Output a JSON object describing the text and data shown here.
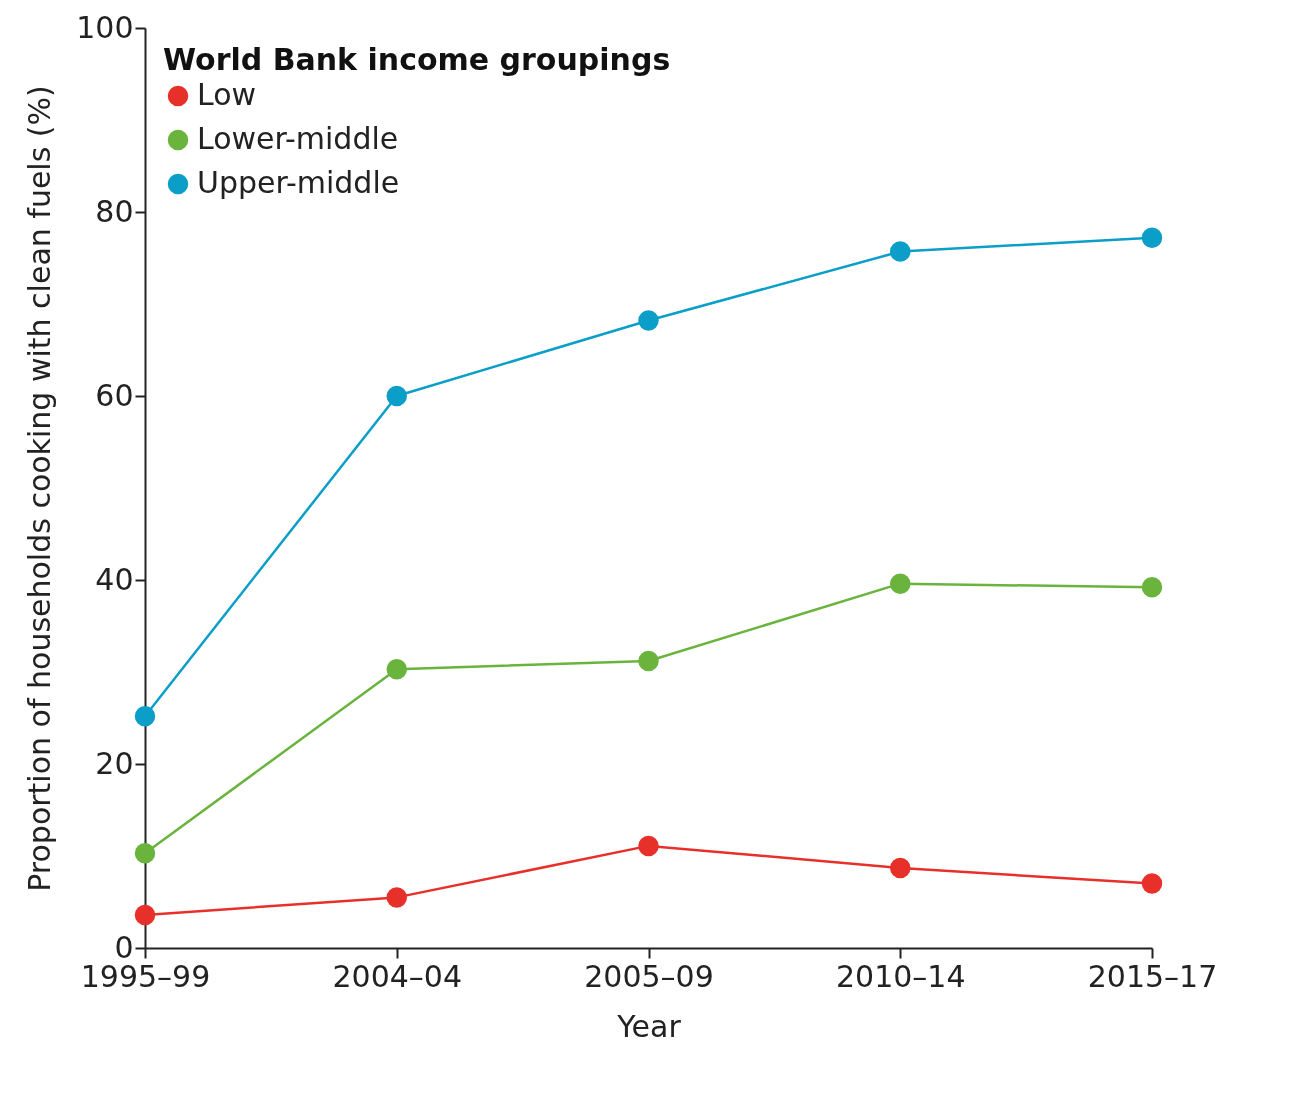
{
  "chart_data": {
    "type": "line",
    "xlabel": "Year",
    "ylabel": "Proportion of households cooking with clean fuels (%)",
    "legend_title": "World Bank income groupings",
    "legend": "top left",
    "marker": "circle",
    "grid": false,
    "categories": [
      "1995–99",
      "2004–04",
      "2005–09",
      "2010–14",
      "2015–17"
    ],
    "ylim": [
      0,
      100
    ],
    "yticks": [
      0,
      20,
      40,
      60,
      80,
      100
    ],
    "series": [
      {
        "name": "Low",
        "color": "#e8302a",
        "values": [
          3.6,
          5.5,
          11.1,
          8.7,
          7.0
        ]
      },
      {
        "name": "Lower-middle",
        "color": "#6ab43e",
        "values": [
          10.3,
          30.3,
          31.2,
          39.6,
          39.2
        ]
      },
      {
        "name": "Upper-middle",
        "color": "#0a9ec9",
        "values": [
          25.2,
          60.0,
          68.2,
          75.7,
          77.2
        ]
      }
    ]
  }
}
